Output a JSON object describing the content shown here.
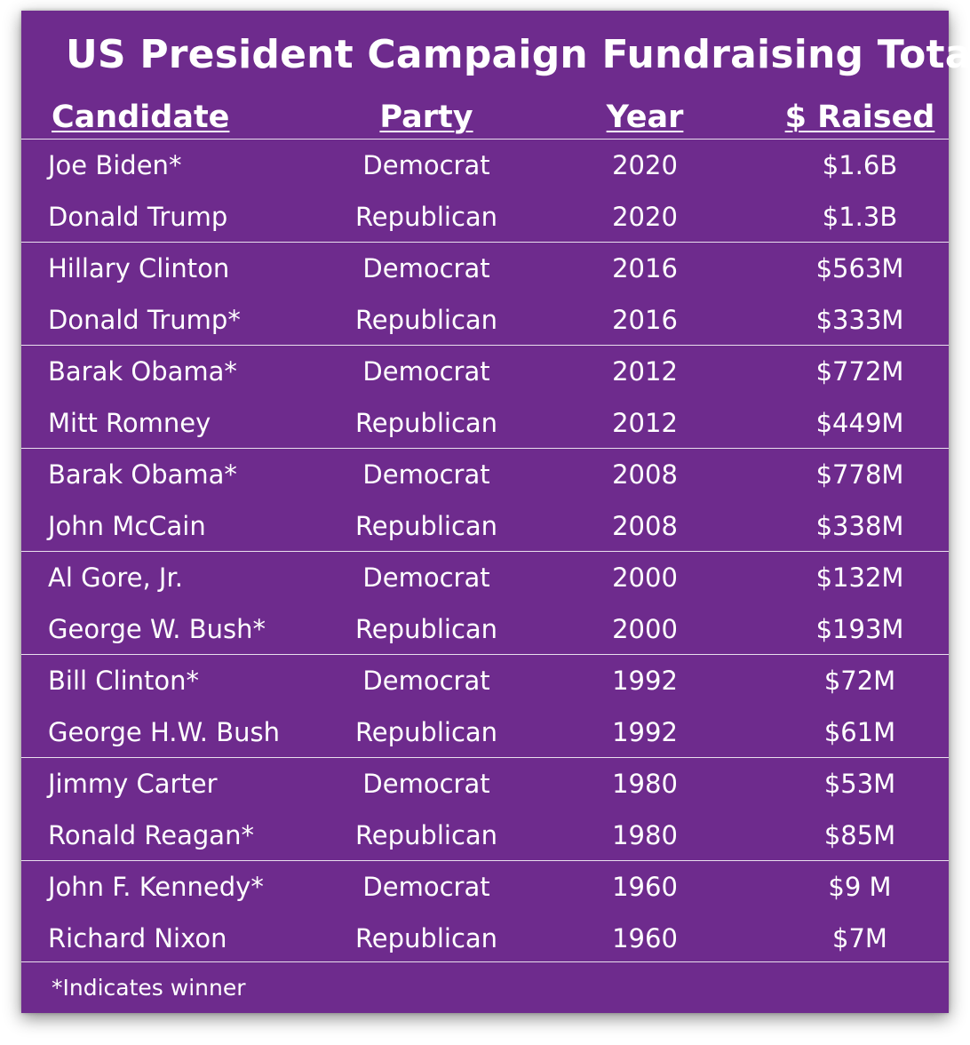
{
  "chart_data": {
    "type": "table",
    "title": "US President Campaign Fundraising Totals",
    "columns": [
      "Candidate",
      "Party",
      "Year",
      "$ Raised"
    ],
    "groups": [
      [
        {
          "candidate": "Joe Biden*",
          "party": "Democrat",
          "year": "2020",
          "raised": "$1.6B"
        },
        {
          "candidate": "Donald Trump",
          "party": "Republican",
          "year": "2020",
          "raised": "$1.3B"
        }
      ],
      [
        {
          "candidate": "Hillary Clinton",
          "party": "Democrat",
          "year": "2016",
          "raised": "$563M"
        },
        {
          "candidate": "Donald Trump*",
          "party": "Republican",
          "year": "2016",
          "raised": "$333M"
        }
      ],
      [
        {
          "candidate": "Barak Obama*",
          "party": "Democrat",
          "year": "2012",
          "raised": "$772M"
        },
        {
          "candidate": "Mitt Romney",
          "party": "Republican",
          "year": "2012",
          "raised": "$449M"
        }
      ],
      [
        {
          "candidate": "Barak Obama*",
          "party": "Democrat",
          "year": "2008",
          "raised": "$778M"
        },
        {
          "candidate": "John McCain",
          "party": "Republican",
          "year": "2008",
          "raised": "$338M"
        }
      ],
      [
        {
          "candidate": "Al Gore, Jr.",
          "party": "Democrat",
          "year": "2000",
          "raised": "$132M"
        },
        {
          "candidate": "George W. Bush*",
          "party": "Republican",
          "year": "2000",
          "raised": "$193M"
        }
      ],
      [
        {
          "candidate": "Bill Clinton*",
          "party": "Democrat",
          "year": "1992",
          "raised": "$72M"
        },
        {
          "candidate": "George H.W. Bush",
          "party": "Republican",
          "year": "1992",
          "raised": "$61M"
        }
      ],
      [
        {
          "candidate": "Jimmy Carter",
          "party": "Democrat",
          "year": "1980",
          "raised": "$53M"
        },
        {
          "candidate": "Ronald Reagan*",
          "party": "Republican",
          "year": "1980",
          "raised": "$85M"
        }
      ],
      [
        {
          "candidate": "John F. Kennedy*",
          "party": "Democrat",
          "year": "1960",
          "raised": "$9 M"
        },
        {
          "candidate": "Richard Nixon",
          "party": "Republican",
          "year": "1960",
          "raised": "$7M"
        }
      ]
    ],
    "footnote": "*Indicates winner"
  },
  "colors": {
    "background": "#6e2b8d",
    "text": "#ffffff",
    "divider": "#ffffff"
  }
}
